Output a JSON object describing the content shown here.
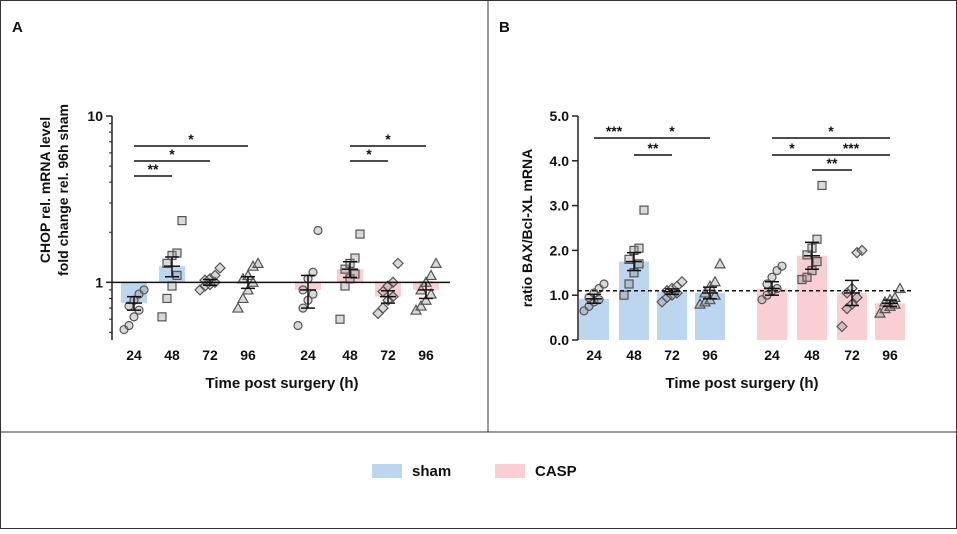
{
  "colors": {
    "sham": "#bcd6f0",
    "casp": "#f9cfd3",
    "marker_stroke": "#555555",
    "marker_fill": "#9a8f92"
  },
  "legend": {
    "sham_label": "sham",
    "casp_label": "CASP"
  },
  "chart_data": [
    {
      "panel": "A",
      "type": "bar",
      "yscale": "log",
      "title": "",
      "ylabel_line1": "CHOP rel. mRNA level",
      "ylabel_line2": "fold change rel. 96h sham",
      "xlabel": "Time post surgery (h)",
      "ylim": [
        0.45,
        10
      ],
      "yticks": [
        {
          "value": 1,
          "label": "1"
        },
        {
          "value": 10,
          "label": "10"
        }
      ],
      "reference_line": 1,
      "categories": [
        "24",
        "48",
        "72",
        "96"
      ],
      "series": [
        {
          "name": "sham",
          "values": [
            0.75,
            1.25,
            1.0,
            1.0
          ],
          "sem": [
            0.07,
            0.17,
            0.04,
            0.08
          ],
          "marker": "circle",
          "markers_by_category": [
            "circle",
            "square",
            "diamond",
            "triangle"
          ],
          "points": [
            [
              0.52,
              0.55,
              0.62,
              0.68,
              0.72,
              0.78,
              0.85,
              0.9
            ],
            [
              0.62,
              0.8,
              0.95,
              1.1,
              1.3,
              1.45,
              1.5,
              2.35
            ],
            [
              0.9,
              0.95,
              0.97,
              1.0,
              1.03,
              1.05,
              1.1,
              1.22
            ],
            [
              0.7,
              0.8,
              0.9,
              1.0,
              1.05,
              1.1,
              1.25,
              1.3
            ]
          ]
        },
        {
          "name": "CASP",
          "values": [
            0.9,
            1.2,
            0.82,
            0.9
          ],
          "sem": [
            0.2,
            0.13,
            0.07,
            0.1
          ],
          "markers_by_category": [
            "circle",
            "square",
            "diamond",
            "triangle"
          ],
          "points": [
            [
              0.55,
              0.7,
              0.78,
              0.85,
              0.9,
              1.05,
              1.15,
              2.05
            ],
            [
              0.6,
              0.95,
              1.05,
              1.12,
              1.2,
              1.3,
              1.4,
              1.95
            ],
            [
              0.65,
              0.7,
              0.78,
              0.82,
              0.88,
              0.95,
              1.0,
              1.3
            ],
            [
              0.68,
              0.72,
              0.78,
              0.85,
              0.9,
              1.0,
              1.1,
              1.3
            ]
          ]
        }
      ],
      "significance": [
        {
          "series": "sham",
          "from": "24",
          "to": "48",
          "label": "**"
        },
        {
          "series": "sham",
          "from": "24",
          "to": "72",
          "label": "*"
        },
        {
          "series": "sham",
          "from": "24",
          "to": "96",
          "label": "*"
        },
        {
          "series": "CASP",
          "from": "48",
          "to": "72",
          "label": "*"
        },
        {
          "series": "CASP",
          "from": "48",
          "to": "96",
          "label": "*"
        }
      ]
    },
    {
      "panel": "B",
      "type": "bar",
      "yscale": "linear",
      "title": "",
      "ylabel": "ratio BAX/Bcl-XL mRNA",
      "xlabel": "Time post surgery (h)",
      "ylim": [
        0,
        5
      ],
      "yticks": [
        {
          "value": 0,
          "label": "0.0"
        },
        {
          "value": 1,
          "label": "1.0"
        },
        {
          "value": 2,
          "label": "2.0"
        },
        {
          "value": 3,
          "label": "3.0"
        },
        {
          "value": 4,
          "label": "4.0"
        },
        {
          "value": 5,
          "label": "5.0"
        }
      ],
      "reference_line": 1.1,
      "categories": [
        "24",
        "48",
        "72",
        "96"
      ],
      "series": [
        {
          "name": "sham",
          "values": [
            0.92,
            1.75,
            1.08,
            1.05
          ],
          "sem": [
            0.1,
            0.2,
            0.06,
            0.13
          ],
          "markers_by_category": [
            "circle",
            "square",
            "diamond",
            "triangle"
          ],
          "points": [
            [
              0.65,
              0.75,
              0.85,
              0.9,
              0.95,
              1.05,
              1.15,
              1.25
            ],
            [
              1.0,
              1.25,
              1.5,
              1.7,
              1.8,
              2.0,
              2.05,
              2.9
            ],
            [
              0.85,
              0.95,
              1.0,
              1.05,
              1.1,
              1.15,
              1.2,
              1.3
            ],
            [
              0.8,
              0.85,
              0.9,
              1.0,
              1.05,
              1.2,
              1.3,
              1.7
            ]
          ]
        },
        {
          "name": "CASP",
          "values": [
            1.15,
            1.88,
            1.05,
            0.82
          ],
          "sem": [
            0.15,
            0.3,
            0.28,
            0.07
          ],
          "markers_by_category": [
            "circle",
            "square",
            "diamond",
            "triangle"
          ],
          "points": [
            [
              0.9,
              1.0,
              1.1,
              1.15,
              1.25,
              1.4,
              1.55,
              1.65
            ],
            [
              1.35,
              1.4,
              1.55,
              1.75,
              1.9,
              2.05,
              2.25,
              3.45
            ],
            [
              0.3,
              0.7,
              0.8,
              0.95,
              1.05,
              1.15,
              1.95,
              2.0
            ],
            [
              0.6,
              0.7,
              0.75,
              0.8,
              0.85,
              0.9,
              0.95,
              1.15
            ]
          ]
        }
      ],
      "significance": [
        {
          "series": "sham",
          "from": "24",
          "to": "48",
          "label": "***"
        },
        {
          "series": "sham",
          "from": "48",
          "to": "72",
          "label": "**"
        },
        {
          "series": "sham",
          "from": "48",
          "to": "96",
          "label": "*"
        },
        {
          "series": "CASP",
          "from": "24",
          "to": "48",
          "label": "*"
        },
        {
          "series": "CASP",
          "from": "24",
          "to": "96",
          "label": "*"
        },
        {
          "series": "CASP",
          "from": "48",
          "to": "72",
          "label": "**"
        },
        {
          "series": "CASP",
          "from": "48",
          "to": "96",
          "label": "***"
        }
      ]
    }
  ]
}
